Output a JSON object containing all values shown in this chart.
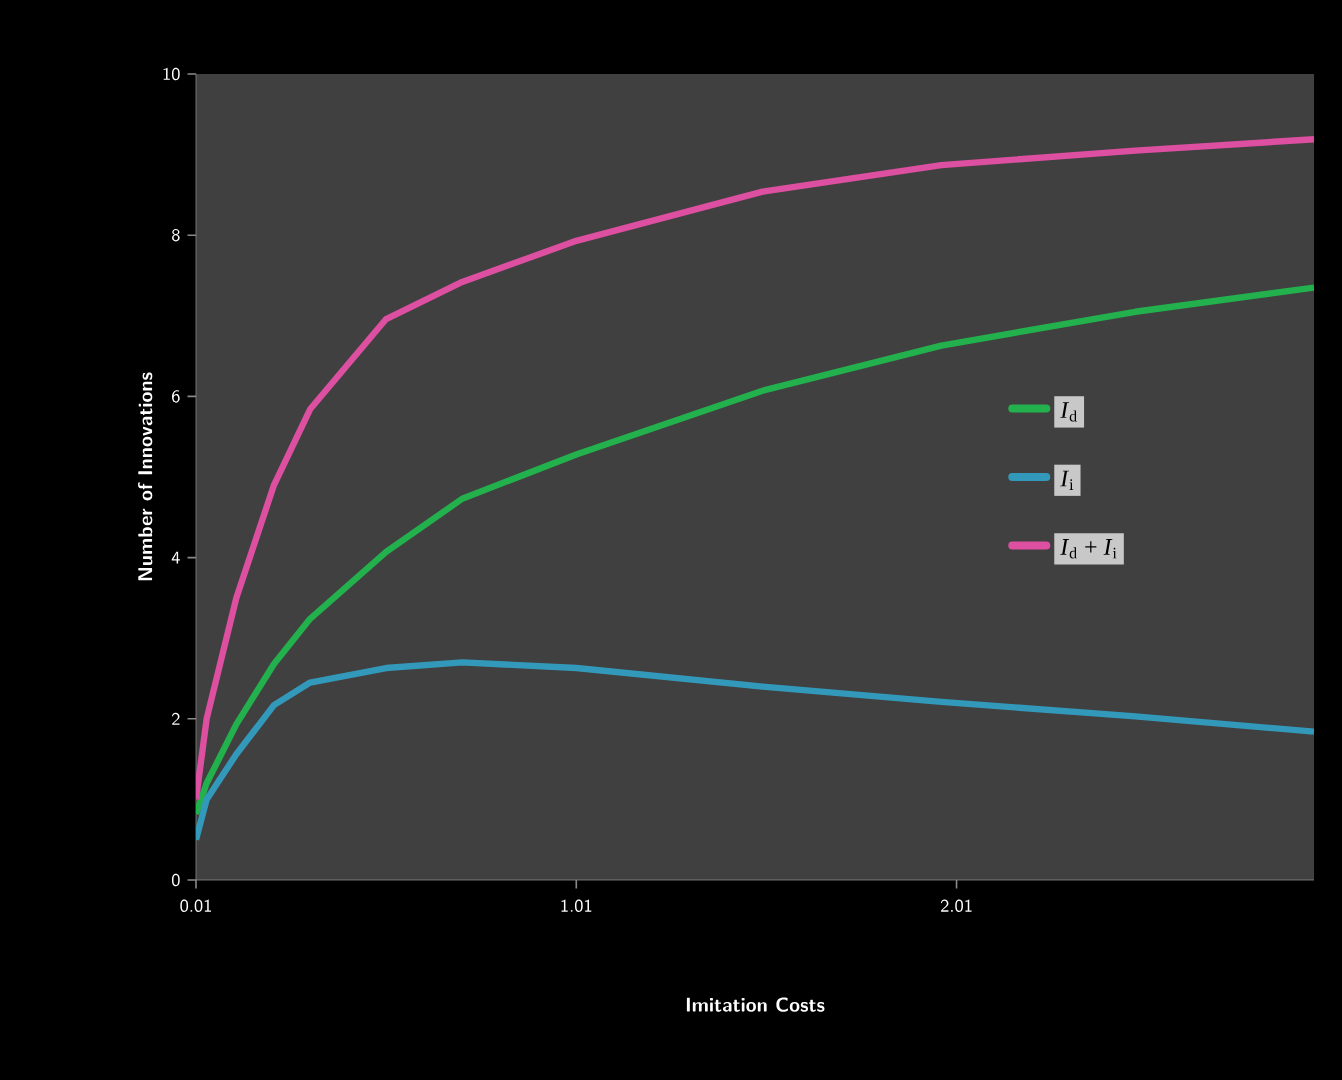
{
  "chart_data": {
    "type": "line",
    "xlabel": "Imitation Costs",
    "ylabel": "Number of Innovations",
    "x": [
      0.01,
      0.038,
      0.116,
      0.215,
      0.31,
      0.51,
      0.71,
      1.01,
      1.5,
      1.97,
      2.48,
      2.95
    ],
    "series": [
      {
        "name": "*I*$_{d}$",
        "color": "#22b14c",
        "values": [
          0.82,
          1.2,
          1.93,
          2.68,
          3.24,
          4.07,
          4.73,
          5.28,
          6.07,
          6.63,
          7.05,
          7.35
        ]
      },
      {
        "name": "*I*$_{i}$",
        "color": "#3399bb",
        "values": [
          0.5,
          1.0,
          1.56,
          2.17,
          2.45,
          2.63,
          2.7,
          2.63,
          2.4,
          2.21,
          2.03,
          1.84
        ]
      },
      {
        "name": "*I*$_{d}$ + *I*$_{i}$",
        "color": "#dd4fa0",
        "values": [
          1.0,
          2.0,
          3.5,
          4.9,
          5.84,
          6.96,
          7.42,
          7.93,
          8.54,
          8.87,
          9.05,
          9.19
        ]
      }
    ],
    "xlim": [
      0.01,
      2.95
    ],
    "ylim": [
      0,
      10
    ],
    "xticks": [
      0.01,
      1.01,
      2.01
    ],
    "yticks": [
      0,
      2,
      4,
      6,
      8,
      10
    ],
    "legend": "right",
    "line_style": "solid"
  }
}
